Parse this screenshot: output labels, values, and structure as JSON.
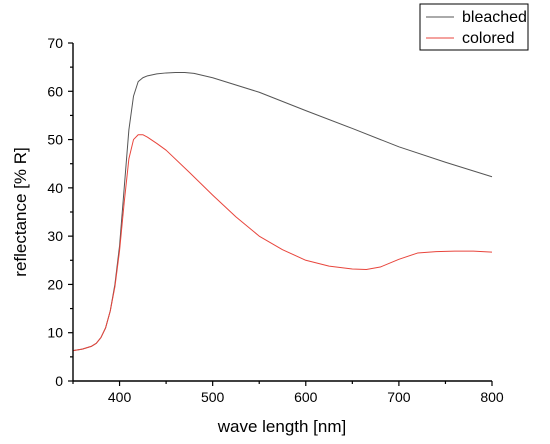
{
  "chart_data": {
    "type": "line",
    "title": "",
    "xlabel": "wave length [nm]",
    "ylabel": "reflectance [% R]",
    "xlim": [
      350,
      800
    ],
    "ylim": [
      0,
      70
    ],
    "xticks": [
      400,
      500,
      600,
      700,
      800
    ],
    "yticks": [
      0,
      10,
      20,
      30,
      40,
      50,
      60,
      70
    ],
    "grid": false,
    "legend_position": "top-right",
    "series": [
      {
        "name": "bleached",
        "color": "#555555",
        "x": [
          350,
          360,
          370,
          375,
          380,
          385,
          390,
          395,
          400,
          405,
          410,
          415,
          420,
          425,
          430,
          440,
          450,
          460,
          470,
          480,
          500,
          550,
          600,
          650,
          700,
          750,
          800
        ],
        "y": [
          6.3,
          6.6,
          7.2,
          7.8,
          9.0,
          11.0,
          14.5,
          20.0,
          28.0,
          40.0,
          52.0,
          59.0,
          62.0,
          62.8,
          63.2,
          63.6,
          63.8,
          63.9,
          63.9,
          63.7,
          62.8,
          59.8,
          56.0,
          52.3,
          48.5,
          45.3,
          42.3
        ]
      },
      {
        "name": "colored",
        "color": "#e8453c",
        "x": [
          350,
          360,
          370,
          375,
          380,
          385,
          390,
          395,
          400,
          405,
          410,
          415,
          420,
          425,
          430,
          440,
          450,
          475,
          500,
          525,
          550,
          575,
          600,
          625,
          650,
          665,
          680,
          700,
          720,
          740,
          760,
          780,
          800
        ],
        "y": [
          6.3,
          6.6,
          7.2,
          7.8,
          9.0,
          11.0,
          14.5,
          19.5,
          27.0,
          37.0,
          46.0,
          50.0,
          51.0,
          51.0,
          50.5,
          49.2,
          47.8,
          43.2,
          38.5,
          34.0,
          30.0,
          27.2,
          25.0,
          23.8,
          23.2,
          23.1,
          23.6,
          25.2,
          26.5,
          26.8,
          26.9,
          26.9,
          26.7
        ]
      }
    ]
  }
}
